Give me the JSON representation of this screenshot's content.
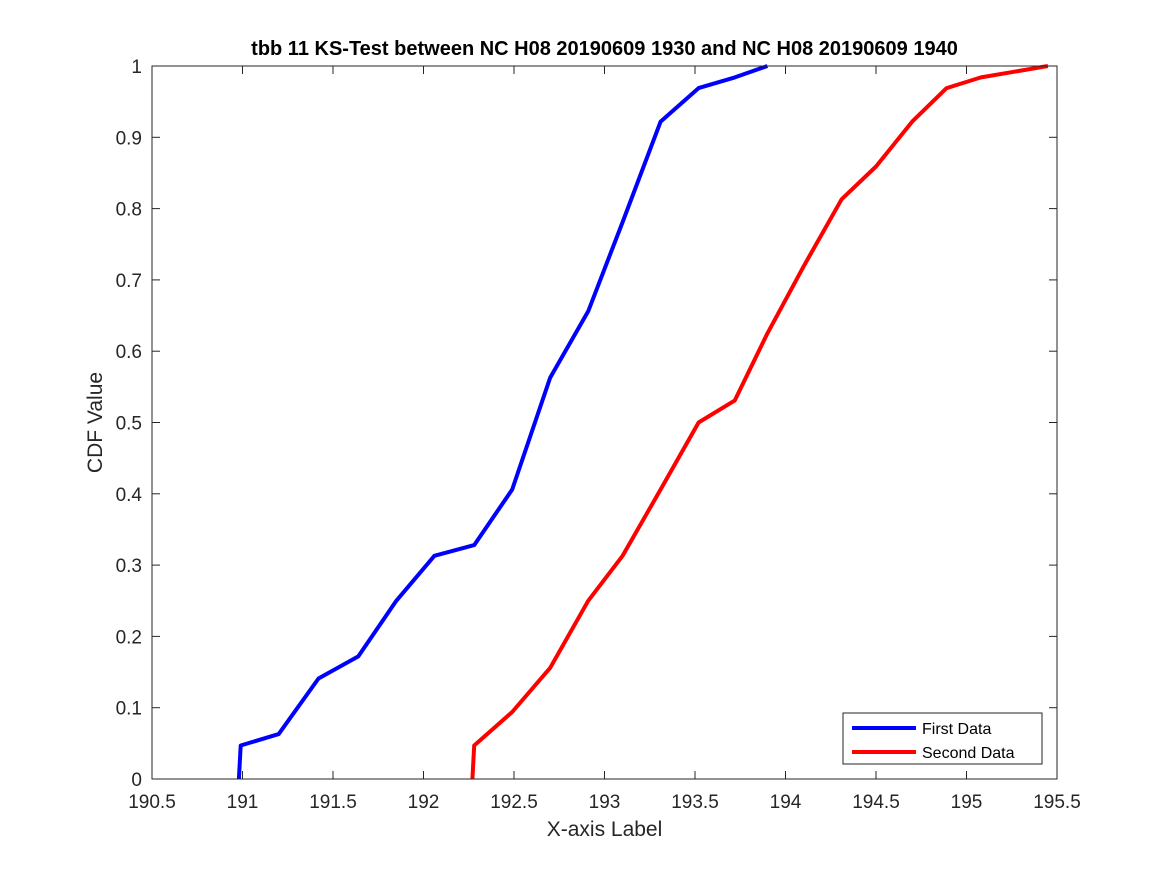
{
  "chart_data": {
    "type": "line",
    "title": "tbb 11 KS-Test between NC H08 20190609 1930 and NC H08 20190609 1940",
    "xlabel": "X-axis Label",
    "ylabel": "CDF Value",
    "xlim": [
      190.5,
      195.5
    ],
    "ylim": [
      0,
      1
    ],
    "xticks": [
      190.5,
      191,
      191.5,
      192,
      192.5,
      193,
      193.5,
      194,
      194.5,
      195,
      195.5
    ],
    "xtick_labels": [
      "190.5",
      "191",
      "191.5",
      "192",
      "192.5",
      "193",
      "193.5",
      "194",
      "194.5",
      "195",
      "195.5"
    ],
    "yticks": [
      0,
      0.1,
      0.2,
      0.3,
      0.4,
      0.5,
      0.6,
      0.7,
      0.8,
      0.9,
      1
    ],
    "ytick_labels": [
      "0",
      "0.1",
      "0.2",
      "0.3",
      "0.4",
      "0.5",
      "0.6",
      "0.7",
      "0.8",
      "0.9",
      "1"
    ],
    "grid": false,
    "legend_position": "bottom-right",
    "series": [
      {
        "name": "First Data",
        "color": "#0000ff",
        "x": [
          190.98,
          190.99,
          191.2,
          191.42,
          191.64,
          191.85,
          192.06,
          192.28,
          192.49,
          192.7,
          192.91,
          193.1,
          193.31,
          193.52,
          193.72,
          193.9
        ],
        "y": [
          0,
          0.047,
          0.063,
          0.141,
          0.172,
          0.25,
          0.313,
          0.328,
          0.406,
          0.563,
          0.656,
          0.781,
          0.922,
          0.969,
          0.984,
          1.0
        ]
      },
      {
        "name": "Second Data",
        "color": "#ff0000",
        "x": [
          192.27,
          192.28,
          192.49,
          192.7,
          192.91,
          193.1,
          193.31,
          193.52,
          193.72,
          193.9,
          194.1,
          194.31,
          194.5,
          194.7,
          194.89,
          195.08,
          195.45
        ],
        "y": [
          0,
          0.047,
          0.094,
          0.156,
          0.25,
          0.313,
          0.406,
          0.5,
          0.531,
          0.625,
          0.719,
          0.813,
          0.859,
          0.922,
          0.969,
          0.984,
          1.0
        ]
      }
    ]
  }
}
